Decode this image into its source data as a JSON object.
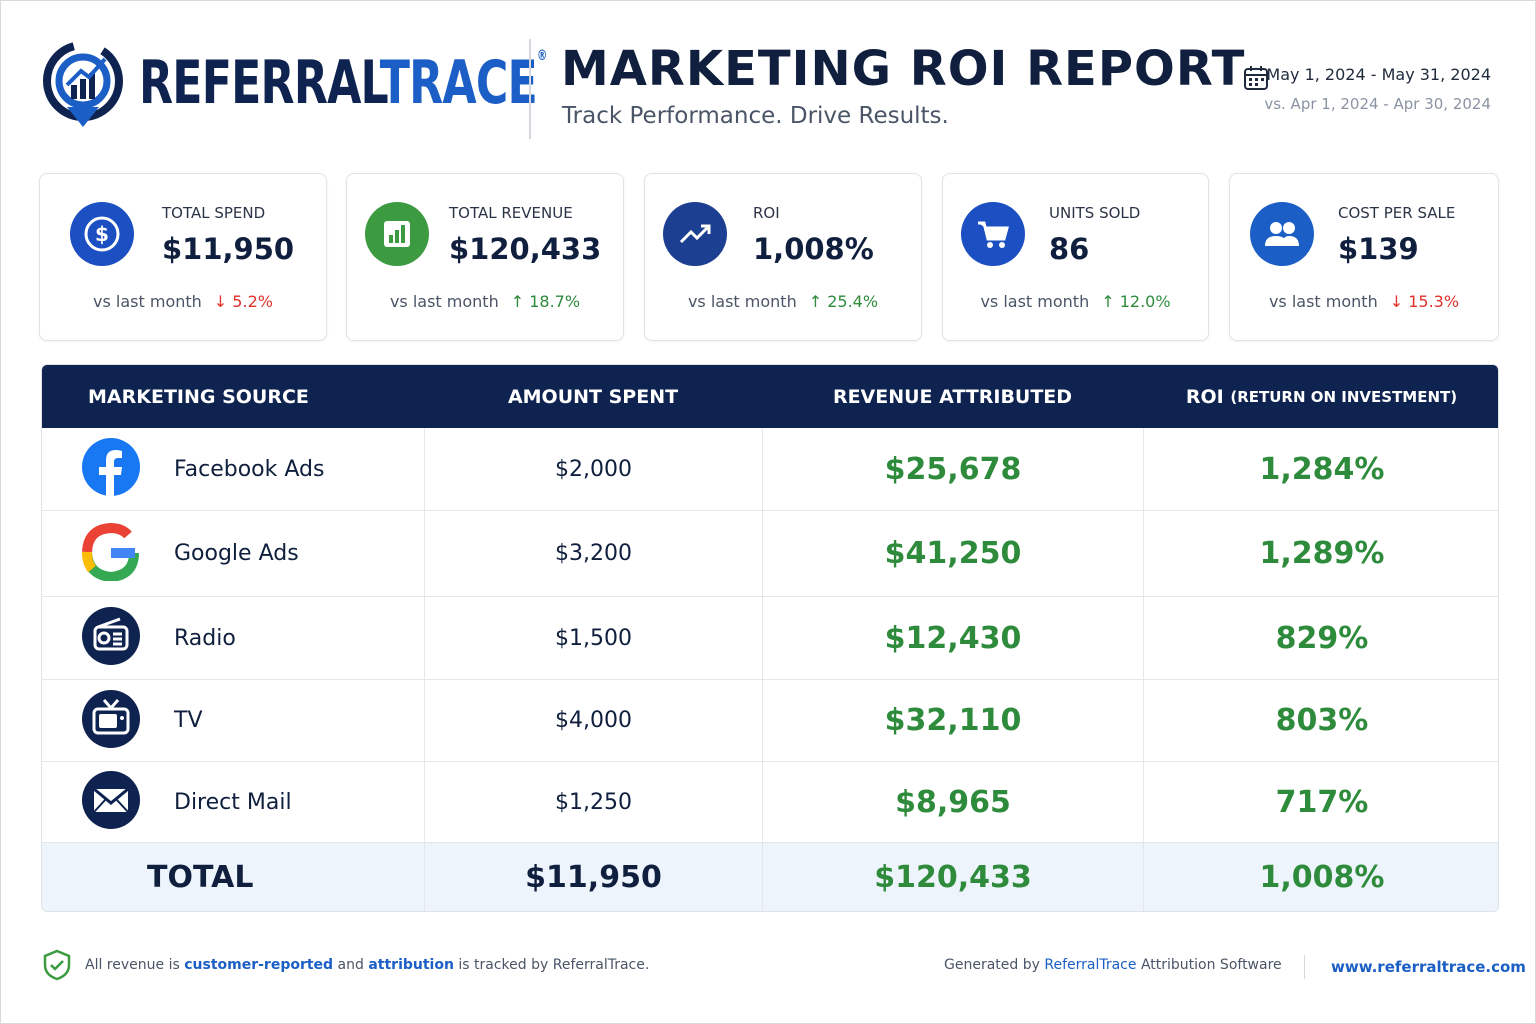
{
  "header": {
    "logo": {
      "part1": "REFERRAL",
      "part2": "TRACE",
      "mark": "®"
    },
    "title": "MARKETING ROI REPORT",
    "subtitle": "Track Performance. Drive Results.",
    "date_range": "May 1, 2024 - May 31, 2024",
    "comparison_range": "vs. Apr 1, 2024 - Apr 30, 2024"
  },
  "kpis": [
    {
      "label": "TOTAL SPEND",
      "value": "$11,950",
      "comparison": "vs last month",
      "change": "5.2%"
    },
    {
      "label": "TOTAL REVENUE",
      "value": "$120,433",
      "comparison": "vs last month",
      "change": "18.7%"
    },
    {
      "label": "ROI",
      "value": "1,008%",
      "comparison": "vs last month",
      "change": "25.4%"
    },
    {
      "label": "UNITS SOLD",
      "value": "86",
      "comparison": "vs last month",
      "change": "12.0%"
    },
    {
      "label": "COST PER SALE",
      "value": "$139",
      "comparison": "vs last month",
      "change": "15.3%"
    }
  ],
  "table": {
    "columns": [
      {
        "label": "MARKETING SOURCE"
      },
      {
        "label": "AMOUNT SPENT"
      },
      {
        "label": "REVENUE ATTRIBUTED"
      },
      {
        "label": "ROI",
        "note": "(RETURN ON INVESTMENT)"
      }
    ],
    "rows": [
      [
        "Facebook Ads",
        "$2,000",
        "$25,678",
        "1,284%"
      ],
      [
        "Google Ads",
        "$3,200",
        "$41,250",
        "1,289%"
      ],
      [
        "Radio",
        "$1,500",
        "$12,430",
        "829%"
      ],
      [
        "TV",
        "$4,000",
        "$32,110",
        "803%"
      ],
      [
        "Direct Mail",
        "$1,250",
        "$8,965",
        "717%"
      ]
    ],
    "total": [
      "TOTAL",
      "$11,950",
      "$120,433",
      "1,008%"
    ]
  },
  "footer": {
    "note": [
      "All revenue is",
      "customer-reported",
      "and",
      "attribution",
      "is tracked by ReferralTrace."
    ],
    "generated": [
      "Generated by",
      "ReferralTrace",
      "Attribution Software"
    ],
    "url": "www.referraltrace.com"
  }
}
